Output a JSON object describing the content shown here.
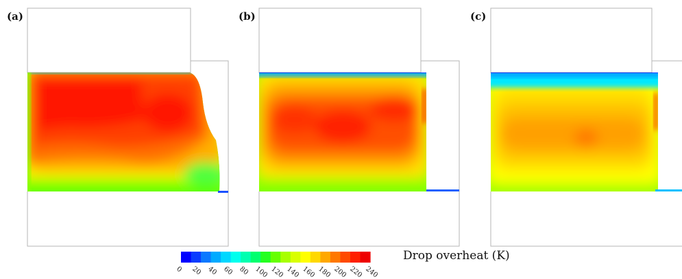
{
  "panels": [
    {
      "label": "(a)"
    },
    {
      "label": "(b)"
    },
    {
      "label": "(c)"
    }
  ],
  "colorbar": {
    "title": "Drop overheat (K)",
    "ticks": [
      "0",
      "20",
      "40",
      "60",
      "80",
      "100",
      "120",
      "140",
      "160",
      "180",
      "200",
      "220",
      "240"
    ],
    "min": 0,
    "max": 240,
    "colors": [
      "#0000ff",
      "#0a3cff",
      "#0a78ff",
      "#00aaff",
      "#00d7ff",
      "#00ffee",
      "#00ffb0",
      "#00ff6e",
      "#24ff20",
      "#66ff00",
      "#a8ff00",
      "#d9ff00",
      "#ffff00",
      "#ffd800",
      "#ffa800",
      "#ff7800",
      "#ff4a00",
      "#ff2000",
      "#ee0000"
    ]
  }
}
